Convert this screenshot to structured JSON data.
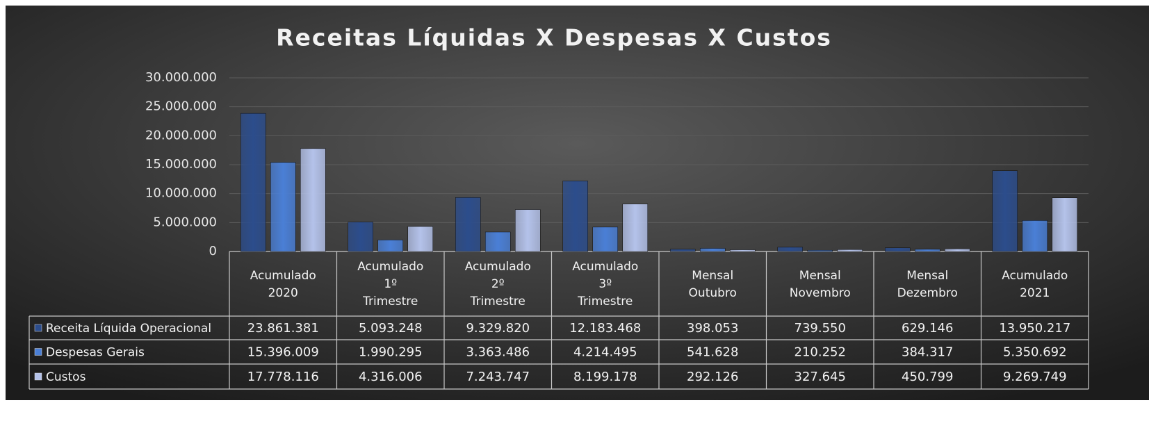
{
  "chart_data": {
    "type": "bar",
    "title": "Receitas Líquidas X Despesas X Custos",
    "categories": [
      "Acumulado 2020",
      "Acumulado 1º Trimestre",
      "Acumulado 2º Trimestre",
      "Acumulado 3º Trimestre",
      "Mensal Outubro",
      "Mensal Novembro",
      "Mensal Dezembro",
      "Acumulado 2021"
    ],
    "series": [
      {
        "name": "Receita Líquida Operacional",
        "color": "#2c4d8c",
        "values": [
          23861381,
          5093248,
          9329820,
          12183468,
          398053,
          739550,
          629146,
          13950217
        ],
        "value_labels": [
          "23.861.381",
          "5.093.248",
          "9.329.820",
          "12.183.468",
          "398.053",
          "739.550",
          "629.146",
          "13.950.217"
        ]
      },
      {
        "name": "Despesas Gerais",
        "color": "#4a7fd6",
        "values": [
          15396009,
          1990295,
          3363486,
          4214495,
          541628,
          210252,
          384317,
          5350692
        ],
        "value_labels": [
          "15.396.009",
          "1.990.295",
          "3.363.486",
          "4.214.495",
          "541.628",
          "210.252",
          "384.317",
          "5.350.692"
        ]
      },
      {
        "name": "Custos",
        "color": "#b4c2ea",
        "values": [
          17778116,
          4316006,
          7243747,
          8199178,
          292126,
          327645,
          450799,
          9269749
        ],
        "value_labels": [
          "17.778.116",
          "4.316.006",
          "7.243.747",
          "8.199.178",
          "292.126",
          "327.645",
          "450.799",
          "9.269.749"
        ]
      }
    ],
    "ylim": [
      0,
      30000000
    ],
    "yticks": [
      0,
      {
        "value": 5000000,
        "label": "5.000.000"
      },
      {
        "value": 10000000,
        "label": "10.000.000"
      },
      {
        "value": 15000000,
        "label": "15.000.000"
      },
      {
        "value": 20000000,
        "label": "20.000.000"
      },
      {
        "value": 25000000,
        "label": "25.000.000"
      },
      {
        "value": 30000000,
        "label": "30.000.000"
      }
    ],
    "grid": true
  }
}
